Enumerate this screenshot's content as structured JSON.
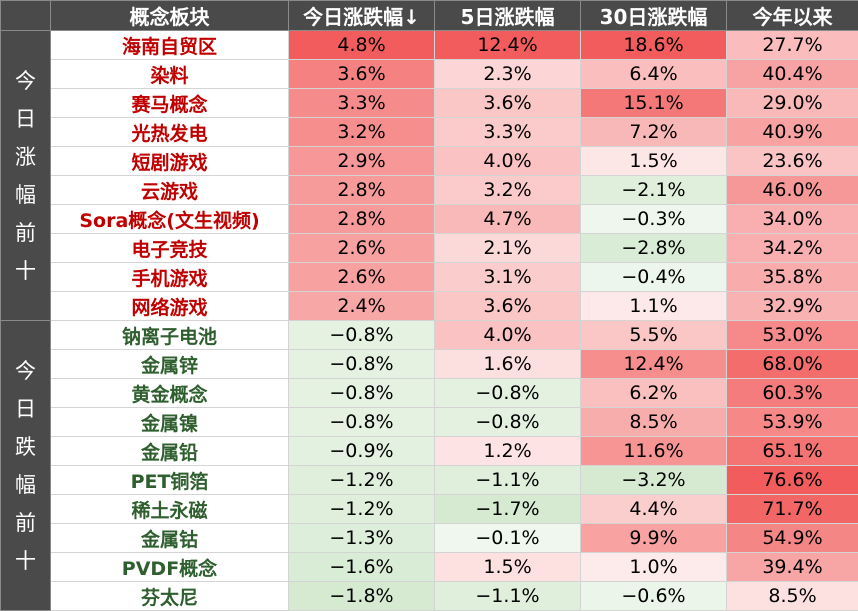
{
  "header": [
    "概念板块",
    "今日涨跌幅↓",
    "5日涨跌幅",
    "30日涨跌幅",
    "今年以来"
  ],
  "groups": [
    {
      "label": "今日涨幅前十",
      "kind": "up",
      "rows": [
        {
          "name": "海南自贸区",
          "values": [
            "4.8%",
            "12.4%",
            "18.6%",
            "27.7%"
          ]
        },
        {
          "name": "染料",
          "values": [
            "3.6%",
            "2.3%",
            "6.4%",
            "40.4%"
          ]
        },
        {
          "name": "赛马概念",
          "values": [
            "3.3%",
            "3.6%",
            "15.1%",
            "29.0%"
          ]
        },
        {
          "name": "光热发电",
          "values": [
            "3.2%",
            "3.3%",
            "7.2%",
            "40.9%"
          ]
        },
        {
          "name": "短剧游戏",
          "values": [
            "2.9%",
            "4.0%",
            "1.5%",
            "23.6%"
          ]
        },
        {
          "name": "云游戏",
          "values": [
            "2.8%",
            "3.2%",
            "−2.1%",
            "46.0%"
          ]
        },
        {
          "name": "Sora概念(文生视频)",
          "values": [
            "2.8%",
            "4.7%",
            "−0.3%",
            "34.0%"
          ]
        },
        {
          "name": "电子竞技",
          "values": [
            "2.6%",
            "2.1%",
            "−2.8%",
            "34.2%"
          ]
        },
        {
          "name": "手机游戏",
          "values": [
            "2.6%",
            "3.1%",
            "−0.4%",
            "35.8%"
          ]
        },
        {
          "name": "网络游戏",
          "values": [
            "2.4%",
            "3.6%",
            "1.1%",
            "32.9%"
          ]
        }
      ]
    },
    {
      "label": "今日跌幅前十",
      "kind": "down",
      "rows": [
        {
          "name": "钠离子电池",
          "values": [
            "−0.8%",
            "4.0%",
            "5.5%",
            "53.0%"
          ]
        },
        {
          "name": "金属锌",
          "values": [
            "−0.8%",
            "1.6%",
            "12.4%",
            "68.0%"
          ]
        },
        {
          "name": "黄金概念",
          "values": [
            "−0.8%",
            "−0.8%",
            "6.2%",
            "60.3%"
          ]
        },
        {
          "name": "金属镍",
          "values": [
            "−0.8%",
            "−0.8%",
            "8.5%",
            "53.9%"
          ]
        },
        {
          "name": "金属铅",
          "values": [
            "−0.9%",
            "1.2%",
            "11.6%",
            "65.1%"
          ]
        },
        {
          "name": "PET铜箔",
          "values": [
            "−1.2%",
            "−1.1%",
            "−3.2%",
            "76.6%"
          ]
        },
        {
          "name": "稀土永磁",
          "values": [
            "−1.2%",
            "−1.7%",
            "4.4%",
            "71.7%"
          ]
        },
        {
          "name": "金属钴",
          "values": [
            "−1.3%",
            "−0.1%",
            "9.9%",
            "54.9%"
          ]
        },
        {
          "name": "PVDF概念",
          "values": [
            "−1.6%",
            "1.5%",
            "1.0%",
            "39.4%"
          ]
        },
        {
          "name": "芬太尼",
          "values": [
            "−1.8%",
            "−1.1%",
            "−0.6%",
            "8.5%"
          ]
        }
      ]
    }
  ],
  "colors": {
    "header_bg": "#4a4a4a",
    "up_text": "#c00000",
    "down_text": "#2f5e2f",
    "heat_positive_max": "#f25c5c",
    "heat_negative_max": "#d6ead2"
  }
}
